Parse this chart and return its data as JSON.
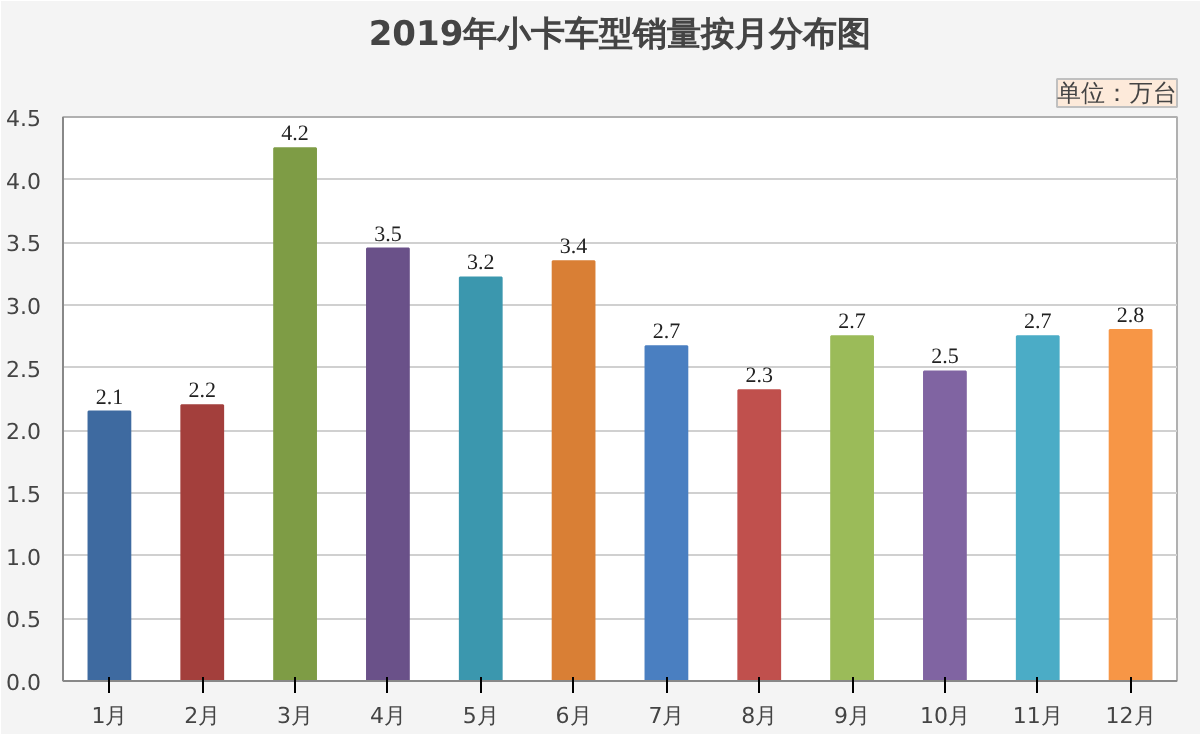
{
  "chart_data": {
    "type": "bar",
    "title": "2019年小卡车型销量按月分布图",
    "annotations": [
      "单位：万台"
    ],
    "categories": [
      "1月",
      "2月",
      "3月",
      "4月",
      "5月",
      "6月",
      "7月",
      "8月",
      "9月",
      "10月",
      "11月",
      "12月"
    ],
    "values": [
      2.15,
      2.2,
      4.25,
      3.45,
      3.22,
      3.35,
      2.67,
      2.32,
      2.75,
      2.47,
      2.75,
      2.8
    ],
    "value_labels": [
      "2.1",
      "2.2",
      "4.2",
      "3.5",
      "3.2",
      "3.4",
      "2.7",
      "2.3",
      "2.7",
      "2.5",
      "2.7",
      "2.8"
    ],
    "colors": [
      "#3e6aa0",
      "#a33f3c",
      "#7e9c45",
      "#6a5189",
      "#3b97ae",
      "#d97f35",
      "#4a7fc1",
      "#c0504d",
      "#9bbb59",
      "#8064a2",
      "#4bacc6",
      "#f79646"
    ],
    "ylim": [
      0,
      4.5
    ],
    "yticks": [
      {
        "value": 0,
        "label": "0.0"
      },
      {
        "value": 0.5,
        "label": "0.5"
      },
      {
        "value": 1,
        "label": "1.0"
      },
      {
        "value": 1.5,
        "label": "1.5"
      },
      {
        "value": 2,
        "label": "2.0"
      },
      {
        "value": 2.5,
        "label": "2.5"
      },
      {
        "value": 3,
        "label": "3.0"
      },
      {
        "value": 3.5,
        "label": "3.5"
      },
      {
        "value": 4,
        "label": "4.0"
      },
      {
        "value": 4.5,
        "label": "4.5"
      }
    ],
    "grid": "y"
  }
}
